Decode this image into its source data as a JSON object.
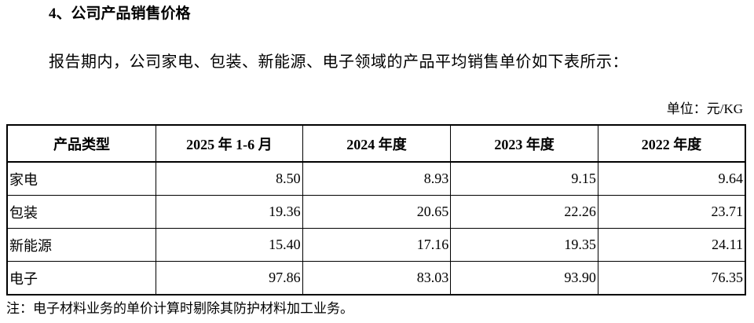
{
  "header": {
    "title": "4、公司产品销售价格"
  },
  "body": {
    "paragraph": "报告期内，公司家电、包装、新能源、电子领域的产品平均销售单价如下表所示："
  },
  "table": {
    "unit": "单位：元/KG",
    "columns": [
      "产品类型",
      "2025 年 1-6 月",
      "2024 年度",
      "2023 年度",
      "2022 年度"
    ],
    "rows": [
      [
        "家电",
        "8.50",
        "8.93",
        "9.15",
        "9.64"
      ],
      [
        "包装",
        "19.36",
        "20.65",
        "22.26",
        "23.71"
      ],
      [
        "新能源",
        "15.40",
        "17.16",
        "19.35",
        "24.11"
      ],
      [
        "电子",
        "97.86",
        "83.03",
        "93.90",
        "76.35"
      ]
    ]
  },
  "footer": {
    "note": "注：电子材料业务的单价计算时剔除其防护材料加工业务。"
  }
}
